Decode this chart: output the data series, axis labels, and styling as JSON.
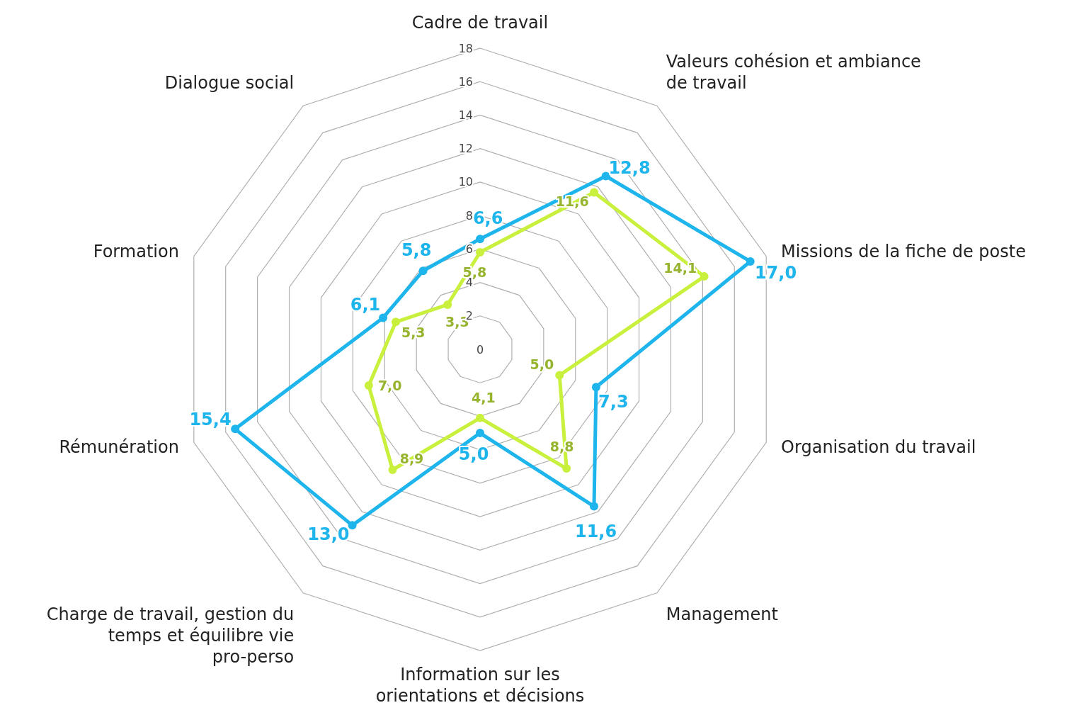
{
  "chart_data": {
    "type": "radar",
    "categories": [
      "Cadre de travail",
      "Valeurs cohésion et ambiance de travail",
      "Missions de la fiche de poste",
      "Organisation du travail",
      "Management",
      "Information sur les orientations et décisions",
      "Charge de travail, gestion du temps et équilibre vie pro-perso",
      "Rémunération",
      "Formation",
      "Dialogue social"
    ],
    "series": [
      {
        "color": "#1eb4ec",
        "values": [
          6.6,
          12.8,
          17.0,
          7.3,
          11.6,
          5.0,
          13.0,
          15.4,
          6.1,
          5.8
        ],
        "value_labels": [
          "6,6",
          "12,8",
          "17,0",
          "7,3",
          "11,6",
          "5,0",
          "13,0",
          "15,4",
          "6,1",
          "5,8"
        ]
      },
      {
        "color": "#c8f03c",
        "values": [
          5.8,
          11.6,
          14.1,
          5.0,
          8.8,
          4.1,
          8.9,
          7.0,
          5.3,
          3.3
        ],
        "value_labels": [
          "5,8",
          "11,6",
          "14,1",
          "5,0",
          "8,8",
          "4,1",
          "8,9",
          "7,0",
          "5,3",
          "3,3"
        ]
      }
    ],
    "ylim": [
      0,
      18
    ],
    "yticks": [
      0,
      2,
      4,
      6,
      8,
      10,
      12,
      14,
      16,
      18
    ],
    "grid": true,
    "marker": "circle"
  }
}
